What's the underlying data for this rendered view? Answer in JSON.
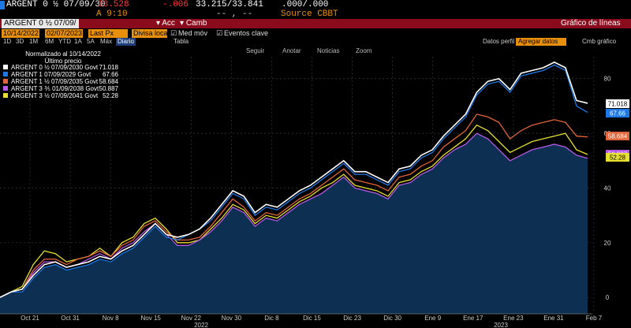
{
  "header": {
    "ticker": "ARGENT 0 ½ 07/09/30",
    "price": "33.528",
    "change": "-.006",
    "bid_ask": "33.215/33.841",
    "size": ".000/.000",
    "time": "A 9:10",
    "marker": "-- , --",
    "source": "Source CBBT"
  },
  "toolbar": {
    "security": "ARGENT 0 ½ 07/09/",
    "acc": "Acc",
    "camb": "Camb",
    "title": "Gráfico de líneas",
    "start_date": "10/14/2022",
    "end_date": "02/07/2023",
    "last_px": "Last Px",
    "local_ccy": "Divisa local",
    "med_mov": "Med móv",
    "eventos": "Eventos clave",
    "periods": [
      "1D",
      "3D",
      "1M",
      "6M",
      "YTD",
      "1A",
      "5A",
      "Máx"
    ],
    "freq": "Diario",
    "tabla": "Tabla",
    "datos_perfil": "Datos perfil",
    "agregar_datos": "Agregar datos",
    "cmb_grafico": "Cmb gráfico",
    "seguir": "Seguir",
    "anotar": "Anotar",
    "noticias": "Noticias",
    "zoom": "Zoom"
  },
  "legend": {
    "title": "Normalizado al 10/14/2022",
    "subtitle": "Último precio",
    "entries": [
      {
        "label": "ARGENT 0 ½ 07/09/2030 Govt",
        "value": "71.018",
        "color": "#ffffff"
      },
      {
        "label": "ARGENT 1 07/09/2029 Govt",
        "value": "67.66",
        "color": "#1e78e6"
      },
      {
        "label": "ARGENT 1 ½ 07/09/2035 Govt",
        "value": "58.684",
        "color": "#e0643c"
      },
      {
        "label": "ARGENT 3 ⅗ 01/09/2038 Govt",
        "value": "50.887",
        "color": "#b45ae6"
      },
      {
        "label": "ARGENT 3 ½ 07/09/2041 Govt",
        "value": "52.28",
        "color": "#e6e030"
      }
    ]
  },
  "chart_data": {
    "type": "line",
    "ylim": [
      -6,
      88
    ],
    "yticks": [
      0,
      20,
      40,
      60,
      80
    ],
    "xtick_labels": [
      "Oct 21",
      "Oct 31",
      "Nov 8",
      "Nov 15",
      "Nov 22",
      "Nov 30",
      "Dic 8",
      "Dic 15",
      "Dic 23",
      "Dic 30",
      "Ene 9",
      "Ene 17",
      "Ene 23",
      "Ene 31",
      "Feb 7"
    ],
    "year_labels": [
      "2022",
      "2023"
    ],
    "series": [
      {
        "name": "ARGENT 0 ½ 07/09/2030 Govt",
        "color": "#ffffff",
        "values": [
          0,
          2,
          3,
          8,
          12,
          13,
          11,
          12,
          13,
          15,
          14,
          17,
          19,
          23,
          27,
          23,
          22,
          23,
          25,
          29,
          34,
          39,
          37,
          31,
          34,
          33,
          36,
          39,
          41,
          44,
          47,
          50,
          46,
          46,
          44,
          42,
          47,
          48,
          52,
          54,
          59,
          63,
          67,
          75,
          79,
          80,
          76,
          82,
          83,
          84,
          86,
          84,
          72,
          71
        ]
      },
      {
        "name": "ARGENT 1 07/09/2029 Govt",
        "color": "#1e78e6",
        "values": [
          0,
          2,
          2,
          7,
          11,
          12,
          10,
          11,
          12,
          14,
          13,
          16,
          18,
          22,
          26,
          22,
          21,
          23,
          25,
          28,
          33,
          38,
          36,
          30,
          33,
          32,
          35,
          38,
          40,
          43,
          46,
          49,
          45,
          45,
          43,
          41,
          46,
          47,
          51,
          53,
          58,
          62,
          66,
          74,
          78,
          79,
          75,
          81,
          82,
          83,
          85,
          83,
          70,
          67.66
        ]
      },
      {
        "name": "ARGENT 1 ½ 07/09/2035 Govt",
        "color": "#e0643c",
        "values": [
          0,
          2,
          3,
          10,
          14,
          14,
          12,
          14,
          15,
          17,
          15,
          19,
          21,
          26,
          28,
          24,
          21,
          21,
          22,
          26,
          31,
          36,
          33,
          28,
          31,
          30,
          33,
          36,
          38,
          41,
          44,
          47,
          43,
          42,
          41,
          39,
          44,
          45,
          48,
          50,
          55,
          58,
          61,
          67,
          66,
          64,
          58,
          61,
          63,
          64,
          65,
          64,
          59,
          58.684
        ]
      },
      {
        "name": "ARGENT 3 ⅗ 01/09/2038 Govt",
        "color": "#b45ae6",
        "values": [
          0,
          2,
          3,
          9,
          13,
          13,
          11,
          12,
          14,
          16,
          14,
          18,
          20,
          24,
          27,
          23,
          19,
          19,
          21,
          24,
          28,
          33,
          31,
          26,
          29,
          28,
          31,
          34,
          36,
          38,
          41,
          44,
          40,
          39,
          38,
          36,
          41,
          42,
          45,
          47,
          51,
          54,
          56,
          60,
          58,
          54,
          50,
          52,
          54,
          55,
          56,
          55,
          52,
          50.887
        ]
      },
      {
        "name": "ARGENT 3 ½ 07/09/2041 Govt",
        "color": "#e6e030",
        "values": [
          0,
          2,
          4,
          12,
          17,
          16,
          13,
          14,
          15,
          18,
          15,
          20,
          22,
          27,
          29,
          25,
          20,
          20,
          21,
          25,
          29,
          34,
          32,
          27,
          30,
          29,
          32,
          35,
          37,
          40,
          42,
          45,
          41,
          40,
          39,
          37,
          42,
          43,
          46,
          48,
          52,
          55,
          58,
          63,
          61,
          57,
          53,
          55,
          57,
          58,
          59,
          60,
          54,
          52.28
        ]
      }
    ]
  }
}
